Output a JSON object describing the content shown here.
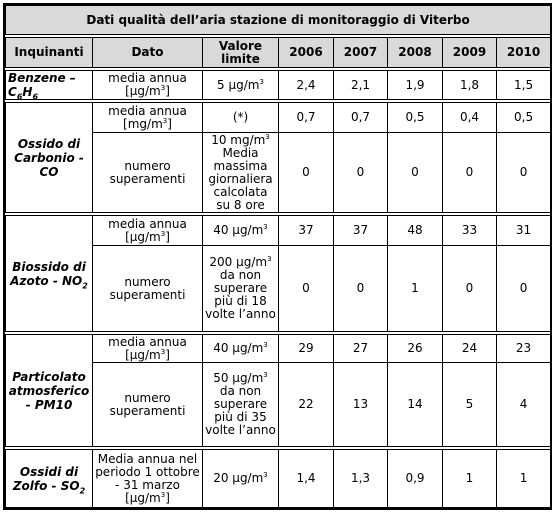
{
  "title": "Dati qualità dell’aria stazione di monitoraggio di Viterbo",
  "headers": {
    "inquinanti": "Inquinanti",
    "dato": "Dato",
    "valore_limite": "Valore limite",
    "years": [
      "2006",
      "2007",
      "2008",
      "2009",
      "2010"
    ]
  },
  "benzene": {
    "name": "Benzene –",
    "formula_c": "C",
    "formula_c_sub": "6",
    "formula_h": "H",
    "formula_h_sub": "6",
    "dato": "media annua [µg/m",
    "dato_sup": "3",
    "dato_end": "]",
    "limite": "5 µg/m",
    "limite_sup": "3",
    "values": [
      "2,4",
      "2,1",
      "1,9",
      "1,8",
      "1,5"
    ]
  },
  "co": {
    "name": "Ossido di Carbonio - CO",
    "row1": {
      "dato": "media annua [mg/m",
      "dato_sup": "3",
      "dato_end": "]",
      "limite": "(*)",
      "values": [
        "0,7",
        "0,7",
        "0,5",
        "0,4",
        "0,5"
      ]
    },
    "row2": {
      "dato": "numero superamenti",
      "limite_a": "10 mg/m",
      "limite_sup": "3",
      "limite_b": "Media massima giornaliera calcolata su 8 ore",
      "values": [
        "0",
        "0",
        "0",
        "0",
        "0"
      ]
    }
  },
  "no2": {
    "name_a": "Biossido di Azoto - NO",
    "name_sub": "2",
    "row1": {
      "dato": "media annua [µg/m",
      "dato_sup": "3",
      "dato_end": "]",
      "limite": "40 µg/m",
      "limite_sup": "3",
      "values": [
        "37",
        "37",
        "48",
        "33",
        "31"
      ]
    },
    "row2": {
      "dato": "numero superamenti",
      "limite_a": "200 µg/m",
      "limite_sup": "3",
      "limite_b": "da non superare più di 18 volte l’anno",
      "values": [
        "0",
        "0",
        "1",
        "0",
        "0"
      ]
    }
  },
  "pm10": {
    "name": "Particolato atmosferico - PM10",
    "row1": {
      "dato": "media annua [µg/m",
      "dato_sup": "3",
      "dato_end": "]",
      "limite": "40 µg/m",
      "limite_sup": "3",
      "values": [
        "29",
        "27",
        "26",
        "24",
        "23"
      ]
    },
    "row2": {
      "dato": "numero superamenti",
      "limite_a": "50 µg/m",
      "limite_sup": "3",
      "limite_b": "da non superare più di 35 volte l’anno",
      "values": [
        "22",
        "13",
        "14",
        "5",
        "4"
      ]
    }
  },
  "so2": {
    "name_a": "Ossidi di Zolfo - SO",
    "name_sub": "2",
    "dato": "Media annua nel periodo 1 ottobre - 31 marzo [µg/m",
    "dato_sup": "3",
    "dato_end": "]",
    "limite": "20 µg/m",
    "limite_sup": "3",
    "values": [
      "1,4",
      "1,3",
      "0,9",
      "1",
      "1"
    ]
  }
}
